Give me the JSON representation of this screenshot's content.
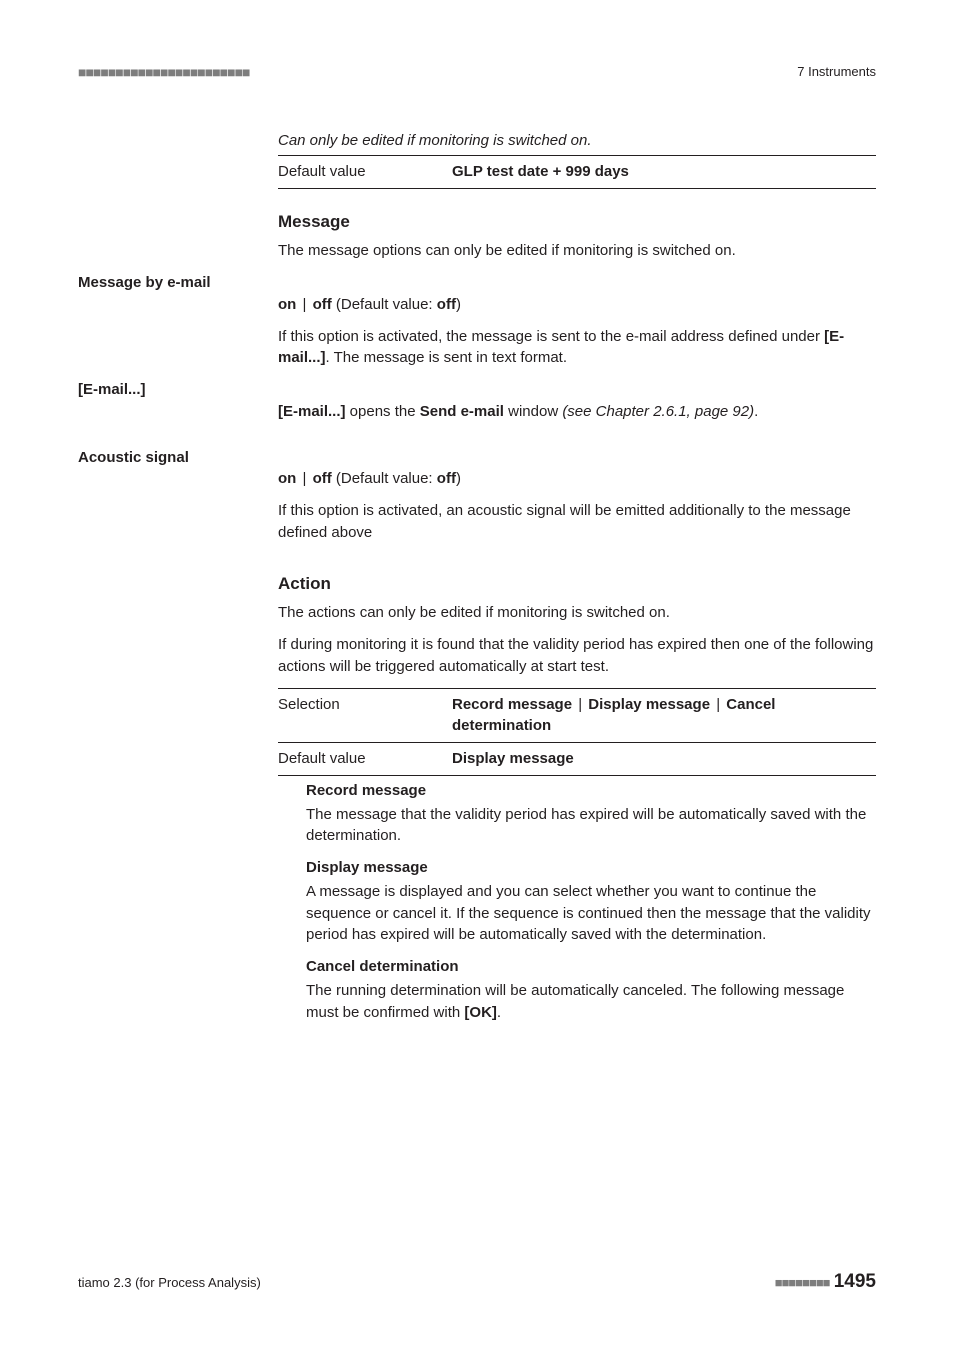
{
  "header": {
    "dashes": "■■■■■■■■■■■■■■■■■■■■■■■",
    "right": "7 Instruments"
  },
  "top_note": "Can only be edited if monitoring is switched on.",
  "top_kv": {
    "key": "Default value",
    "val": "GLP test date + 999 days"
  },
  "msg": {
    "title": "Message",
    "intro": "The message options can only be edited if monitoring is switched on."
  },
  "by_email": {
    "label": "Message by e-mail",
    "on": "on",
    "off": "off",
    "def_prefix": " (Default value: ",
    "def_val": "off",
    "def_suffix": ")",
    "text_a": "If this option is activated, the message is sent to the e-mail address defined under ",
    "text_b": "[E-mail...]",
    "text_c": ". The message is sent in text format."
  },
  "email_btn": {
    "label": "[E-mail...]",
    "a": "[E-mail...]",
    "b": " opens the ",
    "c": "Send e-mail",
    "d": " window ",
    "e": "(see Chapter 2.6.1, page 92)",
    "f": "."
  },
  "acoustic": {
    "label": "Acoustic signal",
    "on": "on",
    "off": "off",
    "def_prefix": " (Default value: ",
    "def_val": "off",
    "def_suffix": ")",
    "text": "If this option is activated, an acoustic signal will be emitted additionally to the message defined above"
  },
  "action": {
    "title": "Action",
    "intro": "The actions can only be edited if monitoring is switched on.",
    "text": "If during monitoring it is found that the validity period has expired then one of the following actions will be triggered automatically at start test.",
    "sel_key": "Selection",
    "sel_a": "Record message",
    "sel_b": "Display message",
    "sel_c": "Cancel determination",
    "def_key": "Default value",
    "def_val": "Display message"
  },
  "record": {
    "head": "Record message",
    "text": "The message that the validity period has expired will be automatically saved with the determination."
  },
  "display": {
    "head": "Display message",
    "text": "A message is displayed and you can select whether you want to continue the sequence or cancel it. If the sequence is continued then the message that the validity period has expired will be automatically saved with the determination."
  },
  "cancel": {
    "head": "Cancel determination",
    "a": "The running determination will be automatically canceled. The following message must be confirmed with ",
    "b": "[OK]",
    "c": "."
  },
  "footer": {
    "left": "tiamo 2.3 (for Process Analysis)",
    "dashes": "■■■■■■■■",
    "page": "1495"
  }
}
